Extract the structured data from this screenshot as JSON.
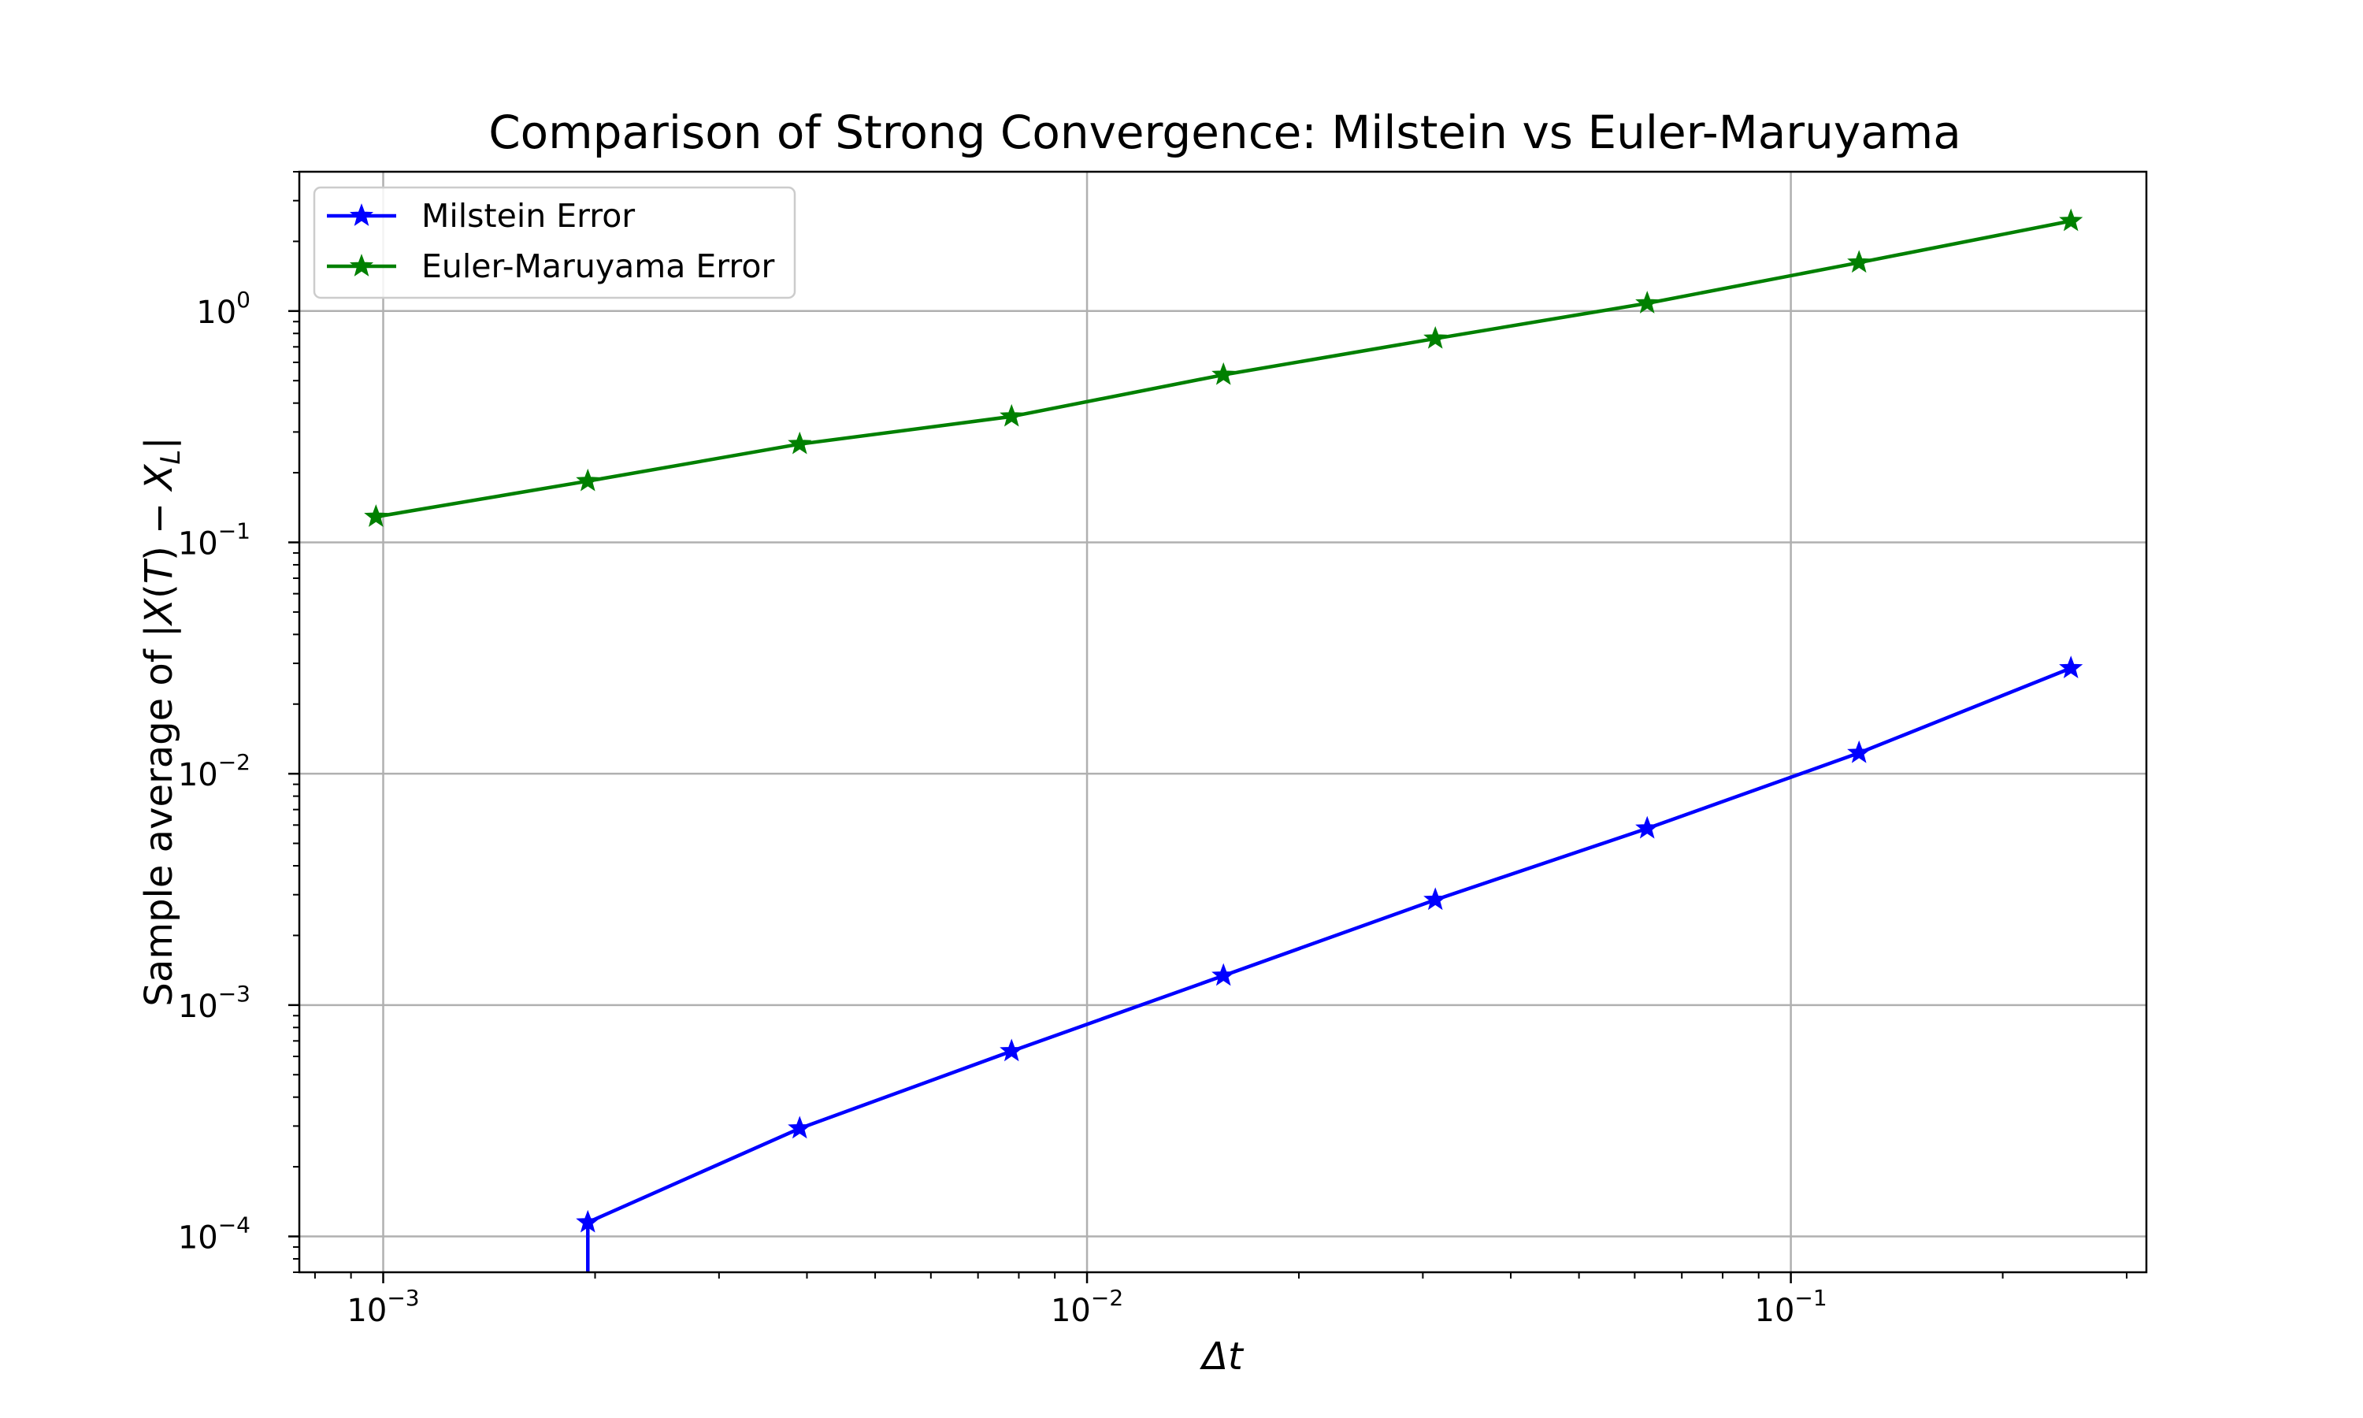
{
  "chart_data": {
    "type": "line",
    "title": "Comparison of Strong Convergence: Milstein vs Euler-Maruyama",
    "xlabel": "Δt",
    "ylabel_parts": {
      "prefix": "Sample average of |",
      "X": "X",
      "open": "(",
      "T": "T",
      "close": ") − ",
      "X2": "X",
      "sub": "L",
      "suffix": "|"
    },
    "x_scale": "log",
    "y_scale": "log",
    "xlim": [
      0.00076,
      0.32
    ],
    "ylim": [
      7e-05,
      4.0
    ],
    "grid": true,
    "legend_position": "upper-left",
    "x_ticks": [
      {
        "value": 0.001,
        "base": "10",
        "exp": "−3"
      },
      {
        "value": 0.01,
        "base": "10",
        "exp": "−2"
      },
      {
        "value": 0.1,
        "base": "10",
        "exp": "−1"
      }
    ],
    "y_ticks": [
      {
        "value": 0.0001,
        "base": "10",
        "exp": "−4"
      },
      {
        "value": 0.001,
        "base": "10",
        "exp": "−3"
      },
      {
        "value": 0.01,
        "base": "10",
        "exp": "−2"
      },
      {
        "value": 0.1,
        "base": "10",
        "exp": "−1"
      },
      {
        "value": 1,
        "base": "10",
        "exp": "0"
      }
    ],
    "series": [
      {
        "name": "Milstein Error",
        "color": "#0000ff",
        "marker": "star",
        "x": [
          0.001953125,
          0.00390625,
          0.0078125,
          0.015625,
          0.03125,
          0.0625,
          0.125,
          0.25
        ],
        "y": [
          0.000115,
          0.000293,
          0.000632,
          0.00134,
          0.00285,
          0.0058,
          0.0123,
          0.0286
        ],
        "drop_to_axis_at_x": 0.001953125
      },
      {
        "name": "Euler-Maruyama Error",
        "color": "#008000",
        "marker": "star",
        "x": [
          0.0009765625,
          0.001953125,
          0.00390625,
          0.0078125,
          0.015625,
          0.03125,
          0.0625,
          0.125,
          0.25
        ],
        "y": [
          0.129,
          0.184,
          0.266,
          0.35,
          0.53,
          0.76,
          1.08,
          1.62,
          2.45
        ]
      }
    ]
  }
}
